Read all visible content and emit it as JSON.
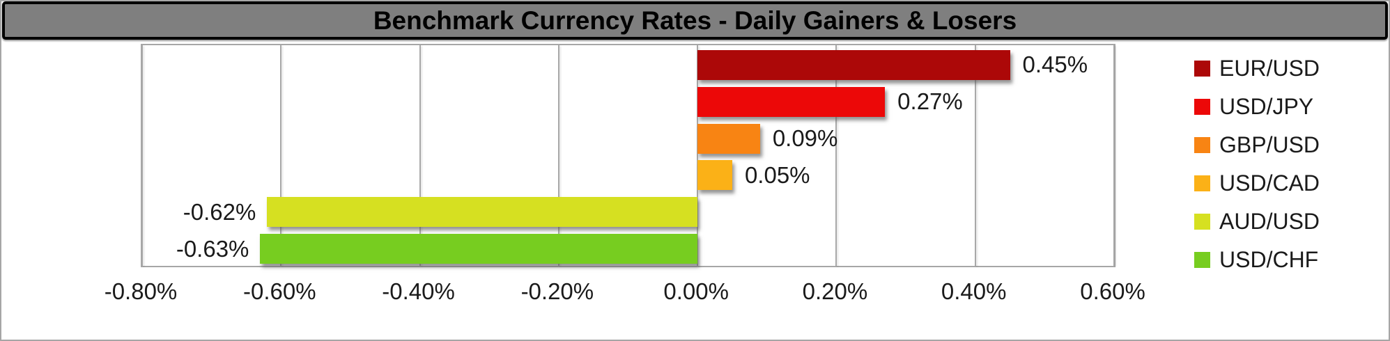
{
  "title": "Benchmark Currency Rates - Daily Gainers & Losers",
  "chart_data": {
    "type": "bar",
    "orientation": "horizontal",
    "title": "Benchmark Currency Rates - Daily Gainers & Losers",
    "xlabel": "",
    "ylabel": "",
    "xlim": [
      -0.8,
      0.6
    ],
    "grid": "vertical",
    "legend_position": "right",
    "categories": [
      "EUR/USD",
      "USD/JPY",
      "GBP/USD",
      "USD/CAD",
      "AUD/USD",
      "USD/CHF"
    ],
    "values": [
      0.45,
      0.27,
      0.09,
      0.05,
      -0.62,
      -0.63
    ],
    "value_labels": [
      "0.45%",
      "0.27%",
      "0.09%",
      "0.05%",
      "-0.62%",
      "-0.63%"
    ],
    "bar_colors": [
      "#ac0808",
      "#ec0808",
      "#f88413",
      "#fbb117",
      "#d6e021",
      "#77cd20"
    ],
    "x_ticks": [
      {
        "value": -0.8,
        "label": "-0.80%"
      },
      {
        "value": -0.6,
        "label": "-0.60%"
      },
      {
        "value": -0.4,
        "label": "-0.40%"
      },
      {
        "value": -0.2,
        "label": "-0.20%"
      },
      {
        "value": 0.0,
        "label": "0.00%"
      },
      {
        "value": 0.2,
        "label": "0.20%"
      },
      {
        "value": 0.4,
        "label": "0.40%"
      },
      {
        "value": 0.6,
        "label": "0.60%"
      }
    ],
    "legend": [
      {
        "label": "EUR/USD",
        "color": "#ac0808"
      },
      {
        "label": "USD/JPY",
        "color": "#ec0808"
      },
      {
        "label": "GBP/USD",
        "color": "#f88413"
      },
      {
        "label": "USD/CAD",
        "color": "#fbb117"
      },
      {
        "label": "AUD/USD",
        "color": "#d6e021"
      },
      {
        "label": "USD/CHF",
        "color": "#77cd20"
      }
    ]
  },
  "colors": {
    "title_bar_background": "#7f7f7f",
    "title_bar_border": "#000000",
    "frame_border": "#a6a6a6",
    "gridline": "#a8a8a8",
    "text": "#1a1a1a",
    "background": "#ffffff"
  }
}
